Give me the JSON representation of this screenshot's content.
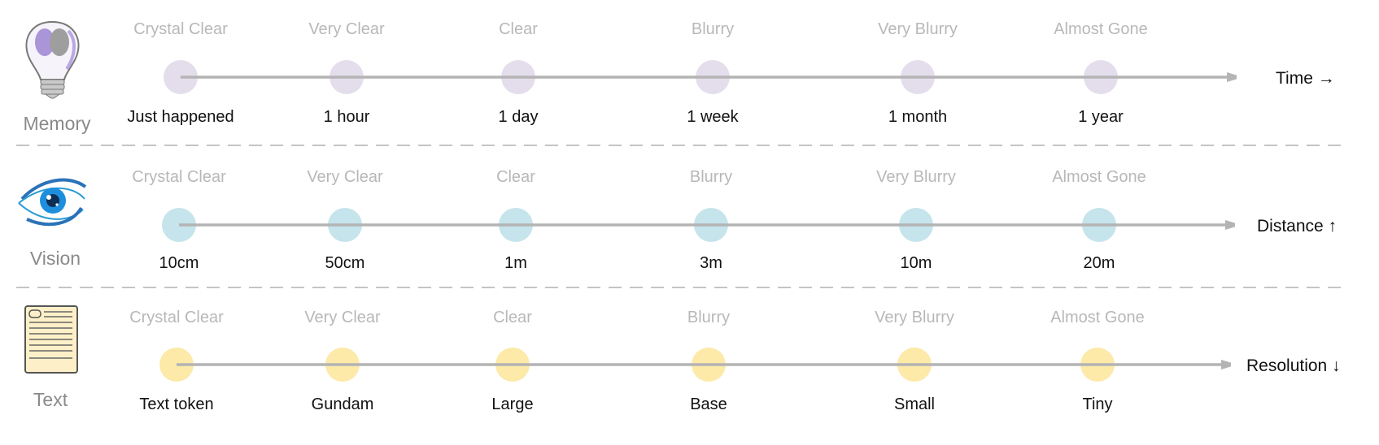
{
  "colors": {
    "memory": "#e4deec",
    "vision": "#c6e4ec",
    "text": "#fde9a8",
    "axis_line": "#b4b4b4",
    "divider": "#c4c4c4"
  },
  "rows": [
    {
      "key": "memory",
      "label": "Memory",
      "icon": "lightbulb-brain-icon",
      "axis_label": "Time →",
      "clarity": [
        "Crystal Clear",
        "Very Clear",
        "Clear",
        "Blurry",
        "Very Blurry",
        "Almost Gone"
      ],
      "values": [
        "Just happened",
        "1 hour",
        "1 day",
        "1 week",
        "1 month",
        "1 year"
      ]
    },
    {
      "key": "vision",
      "label": "Vision",
      "icon": "eye-icon",
      "axis_label": "Distance ↑",
      "clarity": [
        "Crystal Clear",
        "Very Clear",
        "Clear",
        "Blurry",
        "Very Blurry",
        "Almost Gone"
      ],
      "values": [
        "10cm",
        "50cm",
        "1m",
        "3m",
        "10m",
        "20m"
      ]
    },
    {
      "key": "text",
      "label": "Text",
      "icon": "document-icon",
      "axis_label": "Resolution ↓",
      "clarity": [
        "Crystal Clear",
        "Very Clear",
        "Clear",
        "Blurry",
        "Very Blurry",
        "Almost Gone"
      ],
      "values": [
        "Text token",
        "Gundam",
        "Large",
        "Base",
        "Small",
        "Tiny"
      ]
    }
  ]
}
